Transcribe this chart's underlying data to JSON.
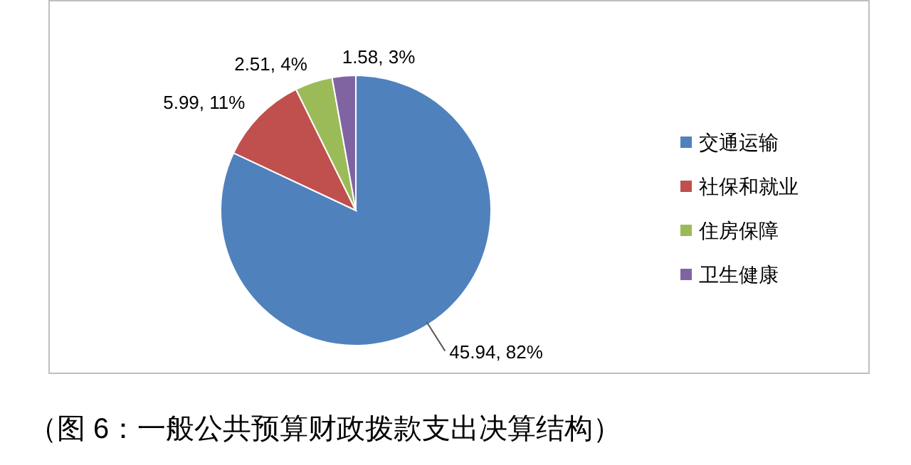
{
  "chart_data": {
    "type": "pie",
    "title": "（图 6：一般公共预算财政拨款支出决算结构）",
    "categories": [
      "交通运输",
      "社保和就业",
      "住房保障",
      "卫生健康"
    ],
    "values": [
      45.94,
      5.99,
      2.51,
      1.58
    ],
    "colors": [
      "#4f81bd",
      "#c0504d",
      "#9bbb59",
      "#8064a2"
    ],
    "value_labels": [
      "45.94, 82%",
      "5.99, 11%",
      "2.51, 4%",
      "1.58, 3%"
    ],
    "legend": "right"
  }
}
